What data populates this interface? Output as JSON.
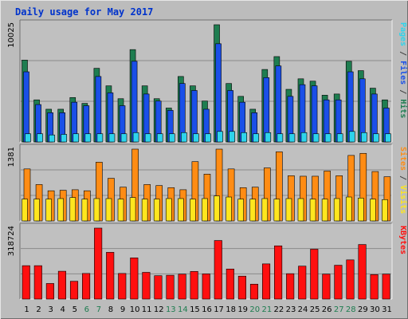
{
  "title": "Daily usage for May 2017",
  "colors": {
    "background": "#bcbcbc",
    "plot_background": "#c0c0c0",
    "hits": "#1e7d50",
    "files": "#1a4fe8",
    "pages": "#2ed4ec",
    "visits": "#ff8c14",
    "sites": "#ffe61e",
    "kbytes": "#ff0f0f",
    "title": "#0033cc",
    "weekend_day": "#1e7d50",
    "weekday": "#000000"
  },
  "panels": {
    "top": {
      "max_label": "10025",
      "legend": [
        {
          "text": "Pages",
          "color": "#2ed4ec"
        },
        {
          "text": " / ",
          "color": "#404040"
        },
        {
          "text": "Files",
          "color": "#1a4fe8"
        },
        {
          "text": " / ",
          "color": "#404040"
        },
        {
          "text": "Hits",
          "color": "#1e7d50"
        }
      ]
    },
    "middle": {
      "max_label": "1381",
      "legend": [
        {
          "text": "Sites",
          "color": "#ff8c14"
        },
        {
          "text": " / ",
          "color": "#404040"
        },
        {
          "text": "Visits",
          "color": "#ffe61e"
        }
      ]
    },
    "bottom": {
      "max_label": "318724",
      "legend": [
        {
          "text": "KBytes",
          "color": "#ff0f0f"
        }
      ]
    }
  },
  "chart_data": {
    "type": "bar",
    "title": "Daily usage for May 2017",
    "categories": [
      "1",
      "2",
      "3",
      "4",
      "5",
      "6",
      "7",
      "8",
      "9",
      "10",
      "11",
      "12",
      "13",
      "14",
      "15",
      "16",
      "17",
      "18",
      "19",
      "20",
      "21",
      "22",
      "23",
      "24",
      "25",
      "26",
      "27",
      "28",
      "29",
      "30",
      "31"
    ],
    "weekend_days": [
      "6",
      "7",
      "13",
      "14",
      "20",
      "21",
      "27",
      "28"
    ],
    "series": [
      {
        "name": "Hits",
        "panel": "top",
        "ylim": [
          0,
          10025
        ],
        "values": [
          7000,
          3600,
          2800,
          2800,
          3800,
          3300,
          6300,
          4800,
          3700,
          7900,
          4800,
          3700,
          2900,
          5600,
          4800,
          3500,
          10025,
          5000,
          3900,
          2800,
          6200,
          7300,
          4500,
          5400,
          5200,
          4000,
          4100,
          6900,
          6100,
          4600,
          3600
        ]
      },
      {
        "name": "Files",
        "panel": "top",
        "ylim": [
          0,
          10025
        ],
        "values": [
          6000,
          3200,
          2500,
          2500,
          3400,
          3100,
          5600,
          4200,
          3100,
          6900,
          4100,
          3500,
          2700,
          5000,
          4400,
          2800,
          8400,
          4400,
          3400,
          2500,
          5500,
          6500,
          3900,
          4900,
          4800,
          3600,
          3600,
          6000,
          5400,
          4100,
          2900
        ]
      },
      {
        "name": "Pages",
        "panel": "top",
        "ylim": [
          0,
          10025
        ],
        "values": [
          700,
          700,
          600,
          650,
          700,
          700,
          700,
          700,
          700,
          800,
          700,
          700,
          700,
          800,
          700,
          700,
          900,
          900,
          800,
          700,
          800,
          700,
          700,
          800,
          700,
          700,
          700,
          900,
          800,
          700,
          700
        ]
      },
      {
        "name": "Visits",
        "panel": "middle",
        "ylim": [
          0,
          1381
        ],
        "values": [
          1000,
          700,
          580,
          590,
          600,
          580,
          1130,
          820,
          650,
          1381,
          700,
          680,
          640,
          600,
          1140,
          900,
          1381,
          1000,
          640,
          650,
          1020,
          1330,
          870,
          860,
          860,
          960,
          870,
          1260,
          1300,
          950,
          850
        ]
      },
      {
        "name": "Sites",
        "panel": "middle",
        "ylim": [
          0,
          1381
        ],
        "values": [
          420,
          420,
          420,
          430,
          450,
          420,
          430,
          430,
          420,
          450,
          420,
          420,
          430,
          430,
          420,
          430,
          480,
          460,
          420,
          420,
          430,
          420,
          430,
          430,
          420,
          420,
          430,
          460,
          440,
          420,
          410
        ]
      },
      {
        "name": "KBytes",
        "panel": "bottom",
        "ylim": [
          0,
          318724
        ],
        "values": [
          150000,
          150000,
          70000,
          125000,
          80000,
          115000,
          318724,
          210000,
          115000,
          185000,
          120000,
          105000,
          107000,
          112000,
          124000,
          113000,
          263000,
          135000,
          103000,
          67000,
          158000,
          239000,
          114000,
          148000,
          224000,
          112000,
          152000,
          176000,
          245000,
          110000,
          112000
        ]
      }
    ]
  }
}
